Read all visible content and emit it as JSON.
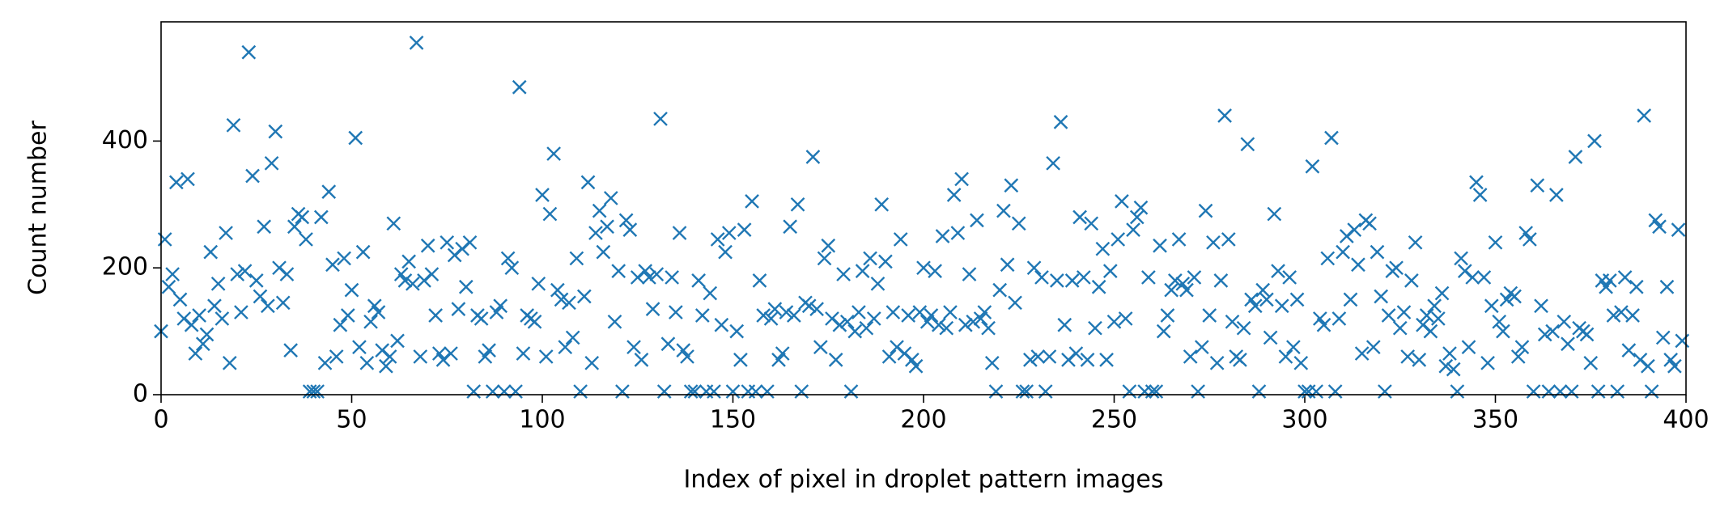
{
  "chart_data": {
    "type": "scatter",
    "x_label": "Index of pixel in droplet pattern images",
    "y_label": "Count number",
    "color": "#1f77b4",
    "xlim": [
      0,
      400
    ],
    "ylim": [
      0,
      588
    ],
    "xticks": [
      0,
      50,
      100,
      150,
      200,
      250,
      300,
      350,
      400
    ],
    "yticks": [
      0,
      200,
      400
    ],
    "grid": false,
    "x": [
      0,
      1,
      2,
      3,
      4,
      5,
      6,
      7,
      8,
      9,
      10,
      11,
      12,
      13,
      14,
      15,
      16,
      17,
      18,
      19,
      20,
      21,
      22,
      23,
      24,
      25,
      26,
      27,
      28,
      29,
      30,
      31,
      32,
      33,
      34,
      35,
      36,
      37,
      38,
      39,
      40,
      41,
      42,
      43,
      44,
      45,
      46,
      47,
      48,
      49,
      50,
      51,
      52,
      53,
      54,
      55,
      56,
      57,
      58,
      59,
      60,
      61,
      62,
      63,
      64,
      65,
      66,
      67,
      68,
      69,
      70,
      71,
      72,
      73,
      74,
      75,
      76,
      77,
      78,
      79,
      80,
      81,
      82,
      83,
      84,
      85,
      86,
      87,
      88,
      89,
      90,
      91,
      92,
      93,
      94,
      95,
      96,
      97,
      98,
      99,
      100,
      101,
      102,
      103,
      104,
      105,
      106,
      107,
      108,
      109,
      110,
      111,
      112,
      113,
      114,
      115,
      116,
      117,
      118,
      119,
      120,
      121,
      122,
      123,
      124,
      125,
      126,
      127,
      128,
      129,
      130,
      131,
      132,
      133,
      134,
      135,
      136,
      137,
      138,
      139,
      140,
      141,
      142,
      143,
      144,
      145,
      146,
      147,
      148,
      149,
      150,
      151,
      152,
      153,
      154,
      155,
      156,
      157,
      158,
      159,
      160,
      161,
      162,
      163,
      164,
      165,
      166,
      167,
      168,
      169,
      170,
      171,
      172,
      173,
      174,
      175,
      176,
      177,
      178,
      179,
      180,
      181,
      182,
      183,
      184,
      185,
      186,
      187,
      188,
      189,
      190,
      191,
      192,
      193,
      194,
      195,
      196,
      197,
      198,
      199,
      200,
      201,
      202,
      203,
      204,
      205,
      206,
      207,
      208,
      209,
      210,
      211,
      212,
      213,
      214,
      215,
      216,
      217,
      218,
      219,
      220,
      221,
      222,
      223,
      224,
      225,
      226,
      227,
      228,
      229,
      230,
      231,
      232,
      233,
      234,
      235,
      236,
      237,
      238,
      239,
      240,
      241,
      242,
      243,
      244,
      245,
      246,
      247,
      248,
      249,
      250,
      251,
      252,
      253,
      254,
      255,
      256,
      257,
      258,
      259,
      260,
      261,
      262,
      263,
      264,
      265,
      266,
      267,
      268,
      269,
      270,
      271,
      272,
      273,
      274,
      275,
      276,
      277,
      278,
      279,
      280,
      281,
      282,
      283,
      284,
      285,
      286,
      287,
      288,
      289,
      290,
      291,
      292,
      293,
      294,
      295,
      296,
      297,
      298,
      299,
      300,
      301,
      302,
      303,
      304,
      305,
      306,
      307,
      308,
      309,
      310,
      311,
      312,
      313,
      314,
      315,
      316,
      317,
      318,
      319,
      320,
      321,
      322,
      323,
      324,
      325,
      326,
      327,
      328,
      329,
      330,
      331,
      332,
      333,
      334,
      335,
      336,
      337,
      338,
      339,
      340,
      341,
      342,
      343,
      344,
      345,
      346,
      347,
      348,
      349,
      350,
      351,
      352,
      353,
      354,
      355,
      356,
      357,
      358,
      359,
      360,
      361,
      362,
      363,
      364,
      365,
      366,
      367,
      368,
      369,
      370,
      371,
      372,
      373,
      374,
      375,
      376,
      377,
      378,
      379,
      380,
      381,
      382,
      383,
      384,
      385,
      386,
      387,
      388,
      389,
      390,
      391,
      392,
      393,
      394,
      395,
      396,
      397,
      398,
      399
    ],
    "values": [
      100,
      245,
      170,
      190,
      335,
      150,
      120,
      340,
      110,
      65,
      125,
      80,
      95,
      225,
      140,
      175,
      120,
      255,
      50,
      425,
      190,
      130,
      195,
      540,
      345,
      180,
      155,
      265,
      140,
      365,
      415,
      200,
      145,
      190,
      70,
      265,
      285,
      280,
      245,
      5,
      5,
      5,
      280,
      50,
      320,
      205,
      60,
      110,
      215,
      125,
      165,
      405,
      75,
      225,
      50,
      115,
      140,
      130,
      70,
      45,
      60,
      270,
      85,
      190,
      180,
      210,
      175,
      555,
      60,
      180,
      235,
      190,
      125,
      65,
      55,
      240,
      65,
      220,
      135,
      230,
      170,
      240,
      5,
      125,
      120,
      60,
      70,
      5,
      130,
      140,
      5,
      215,
      200,
      5,
      485,
      65,
      125,
      120,
      115,
      175,
      315,
      60,
      285,
      380,
      165,
      150,
      75,
      145,
      90,
      215,
      5,
      155,
      335,
      50,
      255,
      290,
      225,
      265,
      310,
      115,
      195,
      5,
      275,
      260,
      75,
      185,
      55,
      195,
      185,
      135,
      190,
      435,
      5,
      80,
      185,
      130,
      255,
      70,
      60,
      5,
      5,
      180,
      125,
      5,
      160,
      5,
      245,
      110,
      225,
      255,
      5,
      100,
      55,
      260,
      5,
      305,
      5,
      180,
      125,
      5,
      120,
      135,
      55,
      65,
      130,
      265,
      125,
      300,
      5,
      145,
      140,
      375,
      135,
      75,
      215,
      235,
      120,
      55,
      110,
      190,
      115,
      5,
      100,
      130,
      195,
      105,
      215,
      120,
      175,
      300,
      210,
      60,
      130,
      75,
      245,
      65,
      125,
      55,
      45,
      130,
      200,
      115,
      125,
      195,
      110,
      250,
      105,
      130,
      315,
      255,
      340,
      110,
      190,
      115,
      275,
      120,
      130,
      105,
      50,
      5,
      165,
      290,
      205,
      330,
      145,
      270,
      5,
      5,
      55,
      200,
      60,
      185,
      5,
      60,
      365,
      180,
      430,
      110,
      55,
      180,
      65,
      280,
      185,
      55,
      270,
      105,
      170,
      230,
      55,
      195,
      115,
      245,
      305,
      120,
      5,
      260,
      280,
      295,
      5,
      185,
      5,
      5,
      235,
      100,
      125,
      165,
      180,
      245,
      175,
      165,
      60,
      185,
      5,
      75,
      290,
      125,
      240,
      50,
      180,
      440,
      245,
      115,
      60,
      55,
      105,
      395,
      150,
      140,
      5,
      165,
      150,
      90,
      285,
      195,
      140,
      60,
      185,
      75,
      150,
      50,
      5,
      5,
      360,
      5,
      120,
      110,
      215,
      405,
      5,
      120,
      225,
      250,
      150,
      260,
      205,
      65,
      275,
      270,
      75,
      225,
      155,
      5,
      125,
      195,
      200,
      105,
      130,
      60,
      180,
      240,
      55,
      110,
      125,
      100,
      140,
      120,
      160,
      45,
      65,
      40,
      5,
      215,
      195,
      75,
      185,
      335,
      315,
      185,
      50,
      140,
      240,
      115,
      100,
      150,
      160,
      155,
      60,
      75,
      255,
      245,
      5,
      330,
      140,
      95,
      5,
      100,
      315,
      5,
      115,
      80,
      5,
      375,
      105,
      100,
      95,
      50,
      400,
      5,
      180,
      170,
      180,
      125,
      5,
      130,
      185,
      70,
      125,
      170,
      55,
      440,
      45,
      5,
      275,
      265,
      90,
      170,
      55,
      45,
      260,
      85
    ]
  }
}
